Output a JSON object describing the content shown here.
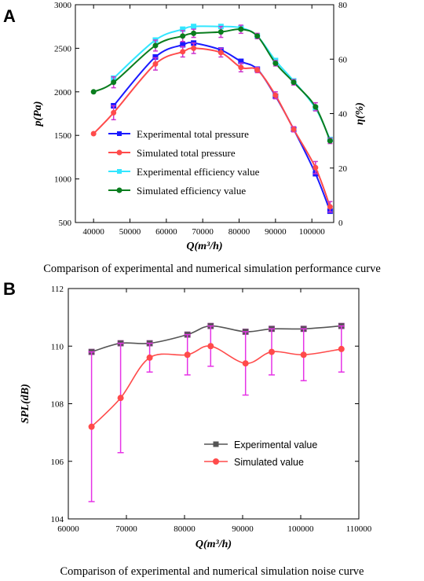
{
  "panels": {
    "a": {
      "letter": "A",
      "caption": "Comparison of experimental and numerical simulation performance curve"
    },
    "b": {
      "letter": "B",
      "caption": "Comparison of experimental and numerical simulation noise curve"
    }
  },
  "chart_data": [
    {
      "type": "line",
      "ylabel": "p(Pa)",
      "y2label": "η(%)",
      "xlabel": "Q(m³/h)",
      "xlim": [
        35000,
        106000
      ],
      "xticks": [
        40000,
        50000,
        60000,
        70000,
        80000,
        90000,
        100000
      ],
      "ylim": [
        500,
        3000
      ],
      "yticks": [
        500,
        1000,
        1500,
        2000,
        2500,
        3000
      ],
      "y2lim": [
        0,
        80
      ],
      "y2ticks": [
        0,
        20,
        40,
        60,
        80
      ],
      "grid": false,
      "legend_position": "center-left",
      "series": [
        {
          "name": "Experimental total pressure",
          "color": "#1a1aff",
          "marker": "square",
          "axis": "left",
          "x": [
            45500,
            57000,
            64500,
            67500,
            75000,
            80500,
            85000,
            90000,
            95000,
            101000,
            105000
          ],
          "y": [
            1840,
            2400,
            2540,
            2560,
            2480,
            2350,
            2260,
            1950,
            1570,
            1060,
            630
          ],
          "err": [
            0,
            0,
            0,
            0,
            0,
            0,
            0,
            0,
            0,
            0,
            0
          ]
        },
        {
          "name": "Simulated total pressure",
          "color": "#ff4b4b",
          "marker": "circle",
          "axis": "left",
          "x": [
            40000,
            45500,
            57000,
            64500,
            67500,
            75000,
            80500,
            85000,
            90000,
            95000,
            101000,
            105000
          ],
          "y": [
            1520,
            1760,
            2320,
            2460,
            2500,
            2450,
            2280,
            2250,
            1960,
            1570,
            1130,
            680
          ],
          "err": [
            0,
            80,
            70,
            60,
            60,
            50,
            50,
            30,
            40,
            30,
            70,
            60
          ]
        },
        {
          "name": "Experimental efficiency value",
          "color": "#33e6ff",
          "marker": "square",
          "axis": "right",
          "x": [
            45500,
            57000,
            64500,
            67500,
            75000,
            80500,
            85000,
            90000,
            95000,
            101000,
            105000
          ],
          "y": [
            53,
            67,
            71,
            72,
            72,
            71.5,
            68.5,
            59.5,
            52,
            42,
            30.5
          ],
          "err": [
            0,
            0,
            0,
            0,
            0,
            0,
            0,
            0,
            0,
            0,
            0
          ]
        },
        {
          "name": "Simulated efficiency value",
          "color": "#0a7d1e",
          "marker": "circle",
          "axis": "right",
          "x": [
            40000,
            45500,
            57000,
            64500,
            67500,
            75000,
            80500,
            85000,
            90000,
            95000,
            101000,
            105000
          ],
          "y": [
            48,
            51.5,
            65,
            68.5,
            69.5,
            70,
            71,
            68.5,
            58.5,
            51.5,
            42.5,
            30
          ],
          "err": [
            0,
            2,
            2,
            2,
            1.5,
            2,
            1.5,
            1,
            1,
            1,
            1.5,
            1
          ]
        }
      ]
    },
    {
      "type": "line",
      "ylabel": "SPL(dB)",
      "xlabel": "Q(m³/h)",
      "xlim": [
        60000,
        110000
      ],
      "xticks": [
        60000,
        70000,
        80000,
        90000,
        100000,
        110000
      ],
      "ylim": [
        104,
        112
      ],
      "yticks": [
        104,
        106,
        108,
        110,
        112
      ],
      "grid": false,
      "legend_position": "bottom-right",
      "series": [
        {
          "name": "Experimental value",
          "color": "#555555",
          "marker": "square",
          "x": [
            64000,
            69000,
            74000,
            80500,
            84500,
            90500,
            95000,
            100500,
            107000
          ],
          "y": [
            109.8,
            110.1,
            110.1,
            110.4,
            110.7,
            110.5,
            110.6,
            110.6,
            110.7
          ],
          "err": [
            0,
            0,
            0,
            0,
            0,
            0,
            0,
            0,
            0
          ]
        },
        {
          "name": "Simulated value",
          "color": "#ff4b4b",
          "marker": "circle",
          "x": [
            64000,
            69000,
            74000,
            80500,
            84500,
            90500,
            95000,
            100500,
            107000
          ],
          "y": [
            107.2,
            108.2,
            109.6,
            109.7,
            110.0,
            109.4,
            109.8,
            109.7,
            109.9
          ],
          "err": [
            2.6,
            1.9,
            0.5,
            0.7,
            0.7,
            1.1,
            0.8,
            0.9,
            0.8
          ]
        }
      ]
    }
  ]
}
